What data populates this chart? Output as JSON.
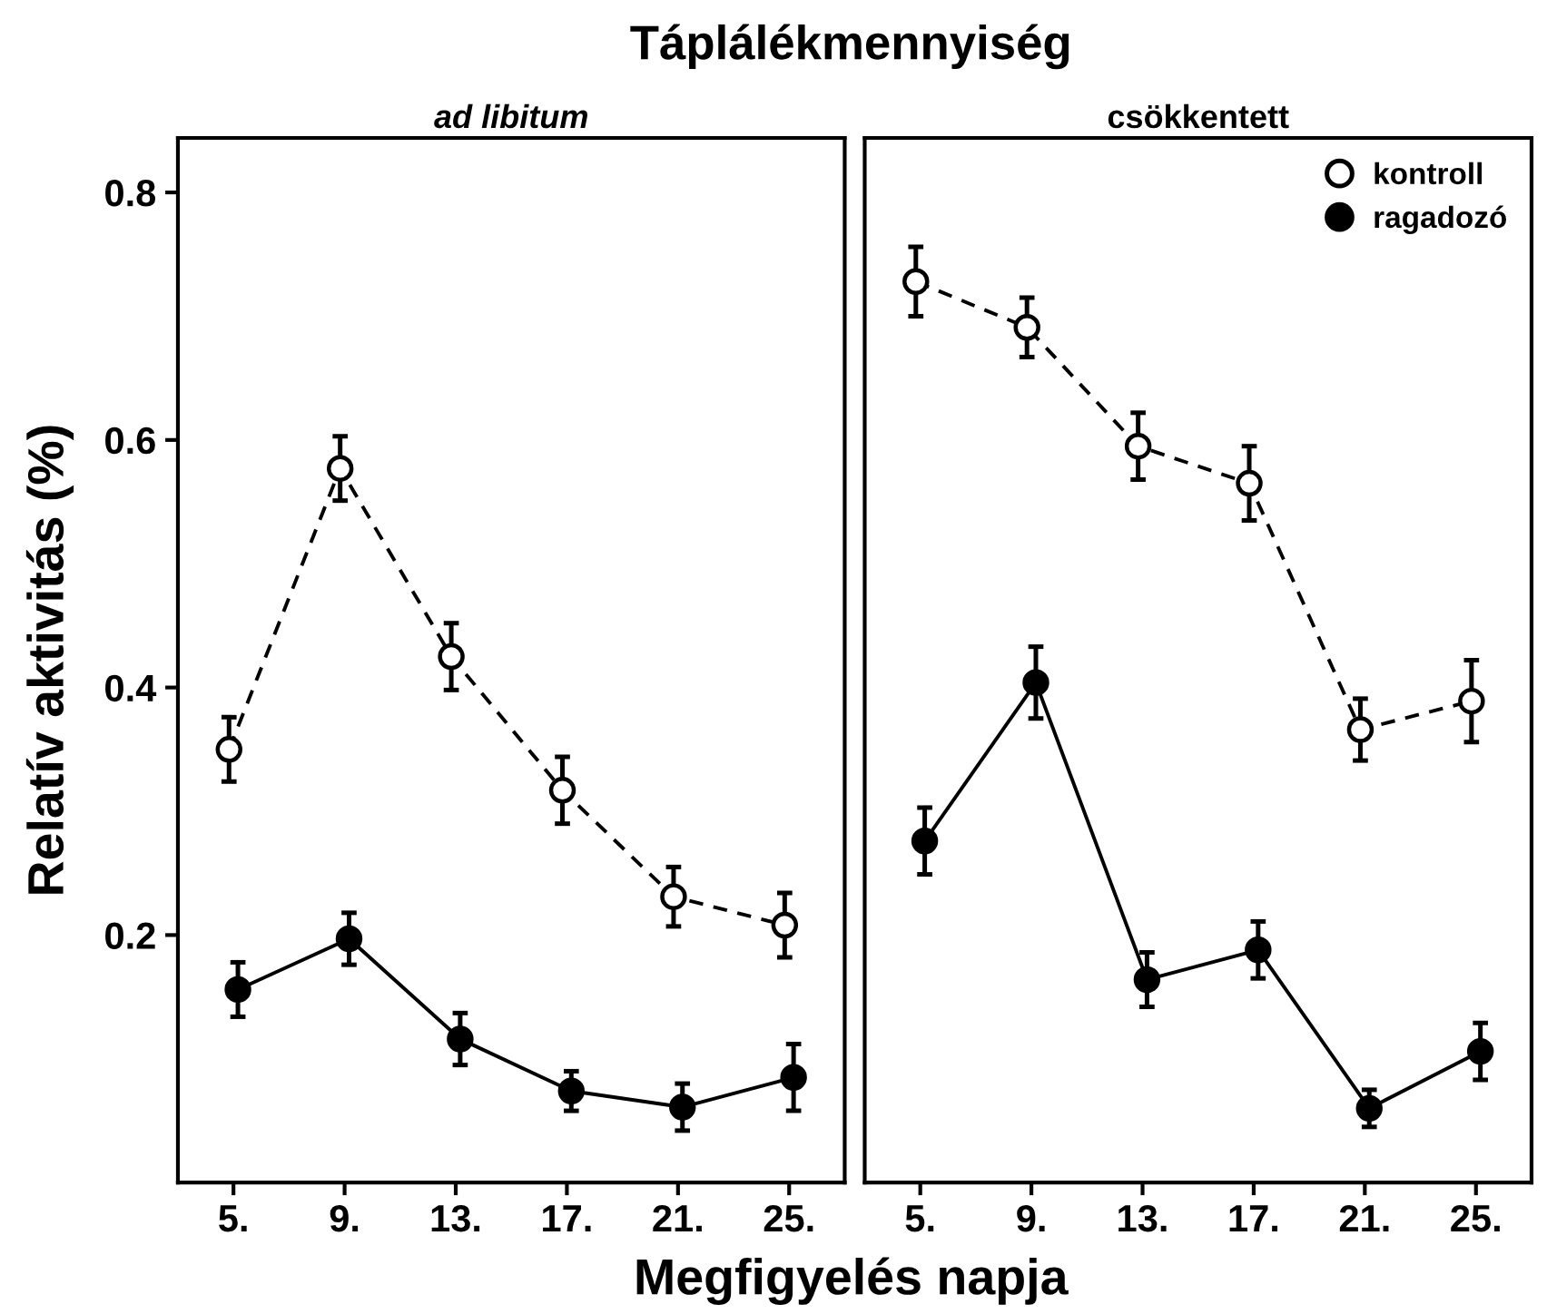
{
  "chart_data": [
    {
      "type": "line",
      "title": "Táplálékmennyiség",
      "subtitle": "ad libitum",
      "xlabel": "Megfigyelés napja",
      "ylabel": "Relatív aktivitás (%)",
      "categories": [
        "5.",
        "9.",
        "13.",
        "17.",
        "21.",
        "25."
      ],
      "ylim": [
        0,
        0.844
      ],
      "yticks": [
        0.2,
        0.4,
        0.6,
        0.8
      ],
      "grid": false,
      "marker": "circle",
      "series": [
        {
          "color": "#ffffff",
          "line_style": "dashed",
          "values": [
            0.35,
            0.577,
            0.425,
            0.317,
            0.231,
            0.208
          ],
          "errors": [
            0.026,
            0.026,
            0.027,
            0.027,
            0.024,
            0.026
          ]
        },
        {
          "color": "#000000",
          "line_style": "solid",
          "values": [
            0.156,
            0.197,
            0.116,
            0.074,
            0.061,
            0.085
          ],
          "errors": [
            0.022,
            0.021,
            0.021,
            0.016,
            0.019,
            0.027
          ]
        }
      ]
    },
    {
      "type": "line",
      "subtitle": "csökkentett",
      "categories": [
        "5.",
        "9.",
        "13.",
        "17.",
        "21.",
        "25."
      ],
      "ylim": [
        0,
        0.844
      ],
      "tick_labels": "x",
      "grid": false,
      "legend": "top right",
      "marker": "circle",
      "series": [
        {
          "name": "kontroll",
          "color": "#ffffff",
          "line_style": "dashed",
          "values": [
            0.728,
            0.691,
            0.595,
            0.565,
            0.366,
            0.389
          ],
          "errors": [
            0.028,
            0.024,
            0.027,
            0.03,
            0.025,
            0.033
          ]
        },
        {
          "name": "ragadozó",
          "color": "#000000",
          "line_style": "solid",
          "values": [
            0.276,
            0.404,
            0.164,
            0.188,
            0.06,
            0.106
          ],
          "errors": [
            0.027,
            0.029,
            0.022,
            0.023,
            0.015,
            0.023
          ]
        }
      ]
    }
  ]
}
